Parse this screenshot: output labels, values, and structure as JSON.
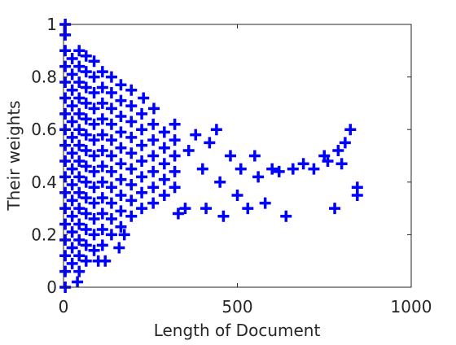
{
  "chart_data": {
    "type": "scatter",
    "xlabel": "Length of Document",
    "ylabel": "Their weights",
    "color": "#0000ff",
    "marker": "+",
    "xlim": [
      0,
      1000
    ],
    "xticks": [
      0,
      500,
      1000
    ],
    "ylim": [
      0,
      1
    ],
    "yticks": [
      0,
      0.2,
      0.4,
      0.6,
      0.8,
      1
    ],
    "x": [
      5,
      5,
      5,
      5,
      5,
      5,
      5,
      5,
      5,
      5,
      5,
      5,
      5,
      5,
      5,
      5,
      5,
      5,
      25,
      25,
      25,
      25,
      25,
      25,
      25,
      25,
      25,
      25,
      25,
      25,
      25,
      25,
      45,
      45,
      45,
      45,
      45,
      45,
      45,
      45,
      45,
      45,
      45,
      45,
      45,
      45,
      45,
      65,
      65,
      65,
      65,
      65,
      65,
      65,
      65,
      65,
      65,
      65,
      65,
      65,
      65,
      88,
      88,
      88,
      88,
      88,
      88,
      88,
      88,
      88,
      88,
      88,
      88,
      88,
      112,
      112,
      112,
      112,
      112,
      112,
      112,
      112,
      112,
      112,
      112,
      112,
      138,
      138,
      138,
      138,
      138,
      138,
      138,
      138,
      138,
      138,
      138,
      165,
      165,
      165,
      165,
      165,
      165,
      165,
      165,
      165,
      165,
      195,
      195,
      195,
      195,
      195,
      195,
      195,
      195,
      195,
      225,
      225,
      225,
      225,
      225,
      225,
      225,
      258,
      258,
      258,
      258,
      258,
      258,
      290,
      290,
      290,
      290,
      290,
      320,
      320,
      320,
      320,
      320,
      350,
      360,
      380,
      400,
      410,
      420,
      440,
      450,
      460,
      480,
      500,
      510,
      530,
      550,
      560,
      580,
      600,
      620,
      640,
      660,
      690,
      720,
      750,
      760,
      780,
      790,
      800,
      810,
      825,
      845,
      845,
      330,
      230,
      260,
      175,
      160,
      120,
      40,
      100
    ],
    "values": [
      0,
      0.06,
      0.12,
      0.18,
      0.24,
      0.3,
      0.36,
      0.42,
      0.48,
      0.54,
      0.6,
      0.66,
      0.72,
      0.78,
      0.84,
      0.9,
      0.96,
      1,
      0.09,
      0.15,
      0.21,
      0.27,
      0.33,
      0.39,
      0.45,
      0.51,
      0.57,
      0.63,
      0.69,
      0.75,
      0.81,
      0.87,
      0.06,
      0.12,
      0.18,
      0.24,
      0.3,
      0.36,
      0.42,
      0.48,
      0.54,
      0.6,
      0.66,
      0.72,
      0.78,
      0.84,
      0.9,
      0.1,
      0.16,
      0.22,
      0.28,
      0.34,
      0.4,
      0.46,
      0.52,
      0.58,
      0.64,
      0.7,
      0.76,
      0.82,
      0.88,
      0.14,
      0.2,
      0.26,
      0.32,
      0.38,
      0.44,
      0.5,
      0.56,
      0.62,
      0.68,
      0.74,
      0.8,
      0.86,
      0.16,
      0.22,
      0.28,
      0.34,
      0.4,
      0.46,
      0.52,
      0.58,
      0.64,
      0.7,
      0.76,
      0.82,
      0.2,
      0.26,
      0.32,
      0.38,
      0.44,
      0.5,
      0.56,
      0.62,
      0.68,
      0.74,
      0.8,
      0.23,
      0.29,
      0.35,
      0.41,
      0.47,
      0.53,
      0.59,
      0.65,
      0.71,
      0.77,
      0.27,
      0.33,
      0.39,
      0.45,
      0.51,
      0.57,
      0.63,
      0.69,
      0.75,
      0.3,
      0.36,
      0.42,
      0.48,
      0.54,
      0.6,
      0.66,
      0.32,
      0.38,
      0.44,
      0.5,
      0.56,
      0.62,
      0.35,
      0.41,
      0.47,
      0.53,
      0.59,
      0.38,
      0.44,
      0.5,
      0.56,
      0.62,
      0.3,
      0.52,
      0.58,
      0.45,
      0.3,
      0.55,
      0.6,
      0.4,
      0.27,
      0.5,
      0.35,
      0.45,
      0.3,
      0.5,
      0.42,
      0.32,
      0.45,
      0.44,
      0.27,
      0.45,
      0.47,
      0.45,
      0.5,
      0.48,
      0.3,
      0.52,
      0.47,
      0.55,
      0.6,
      0.35,
      0.38,
      0.28,
      0.72,
      0.68,
      0.2,
      0.15,
      0.1,
      0.02,
      0.1
    ]
  }
}
